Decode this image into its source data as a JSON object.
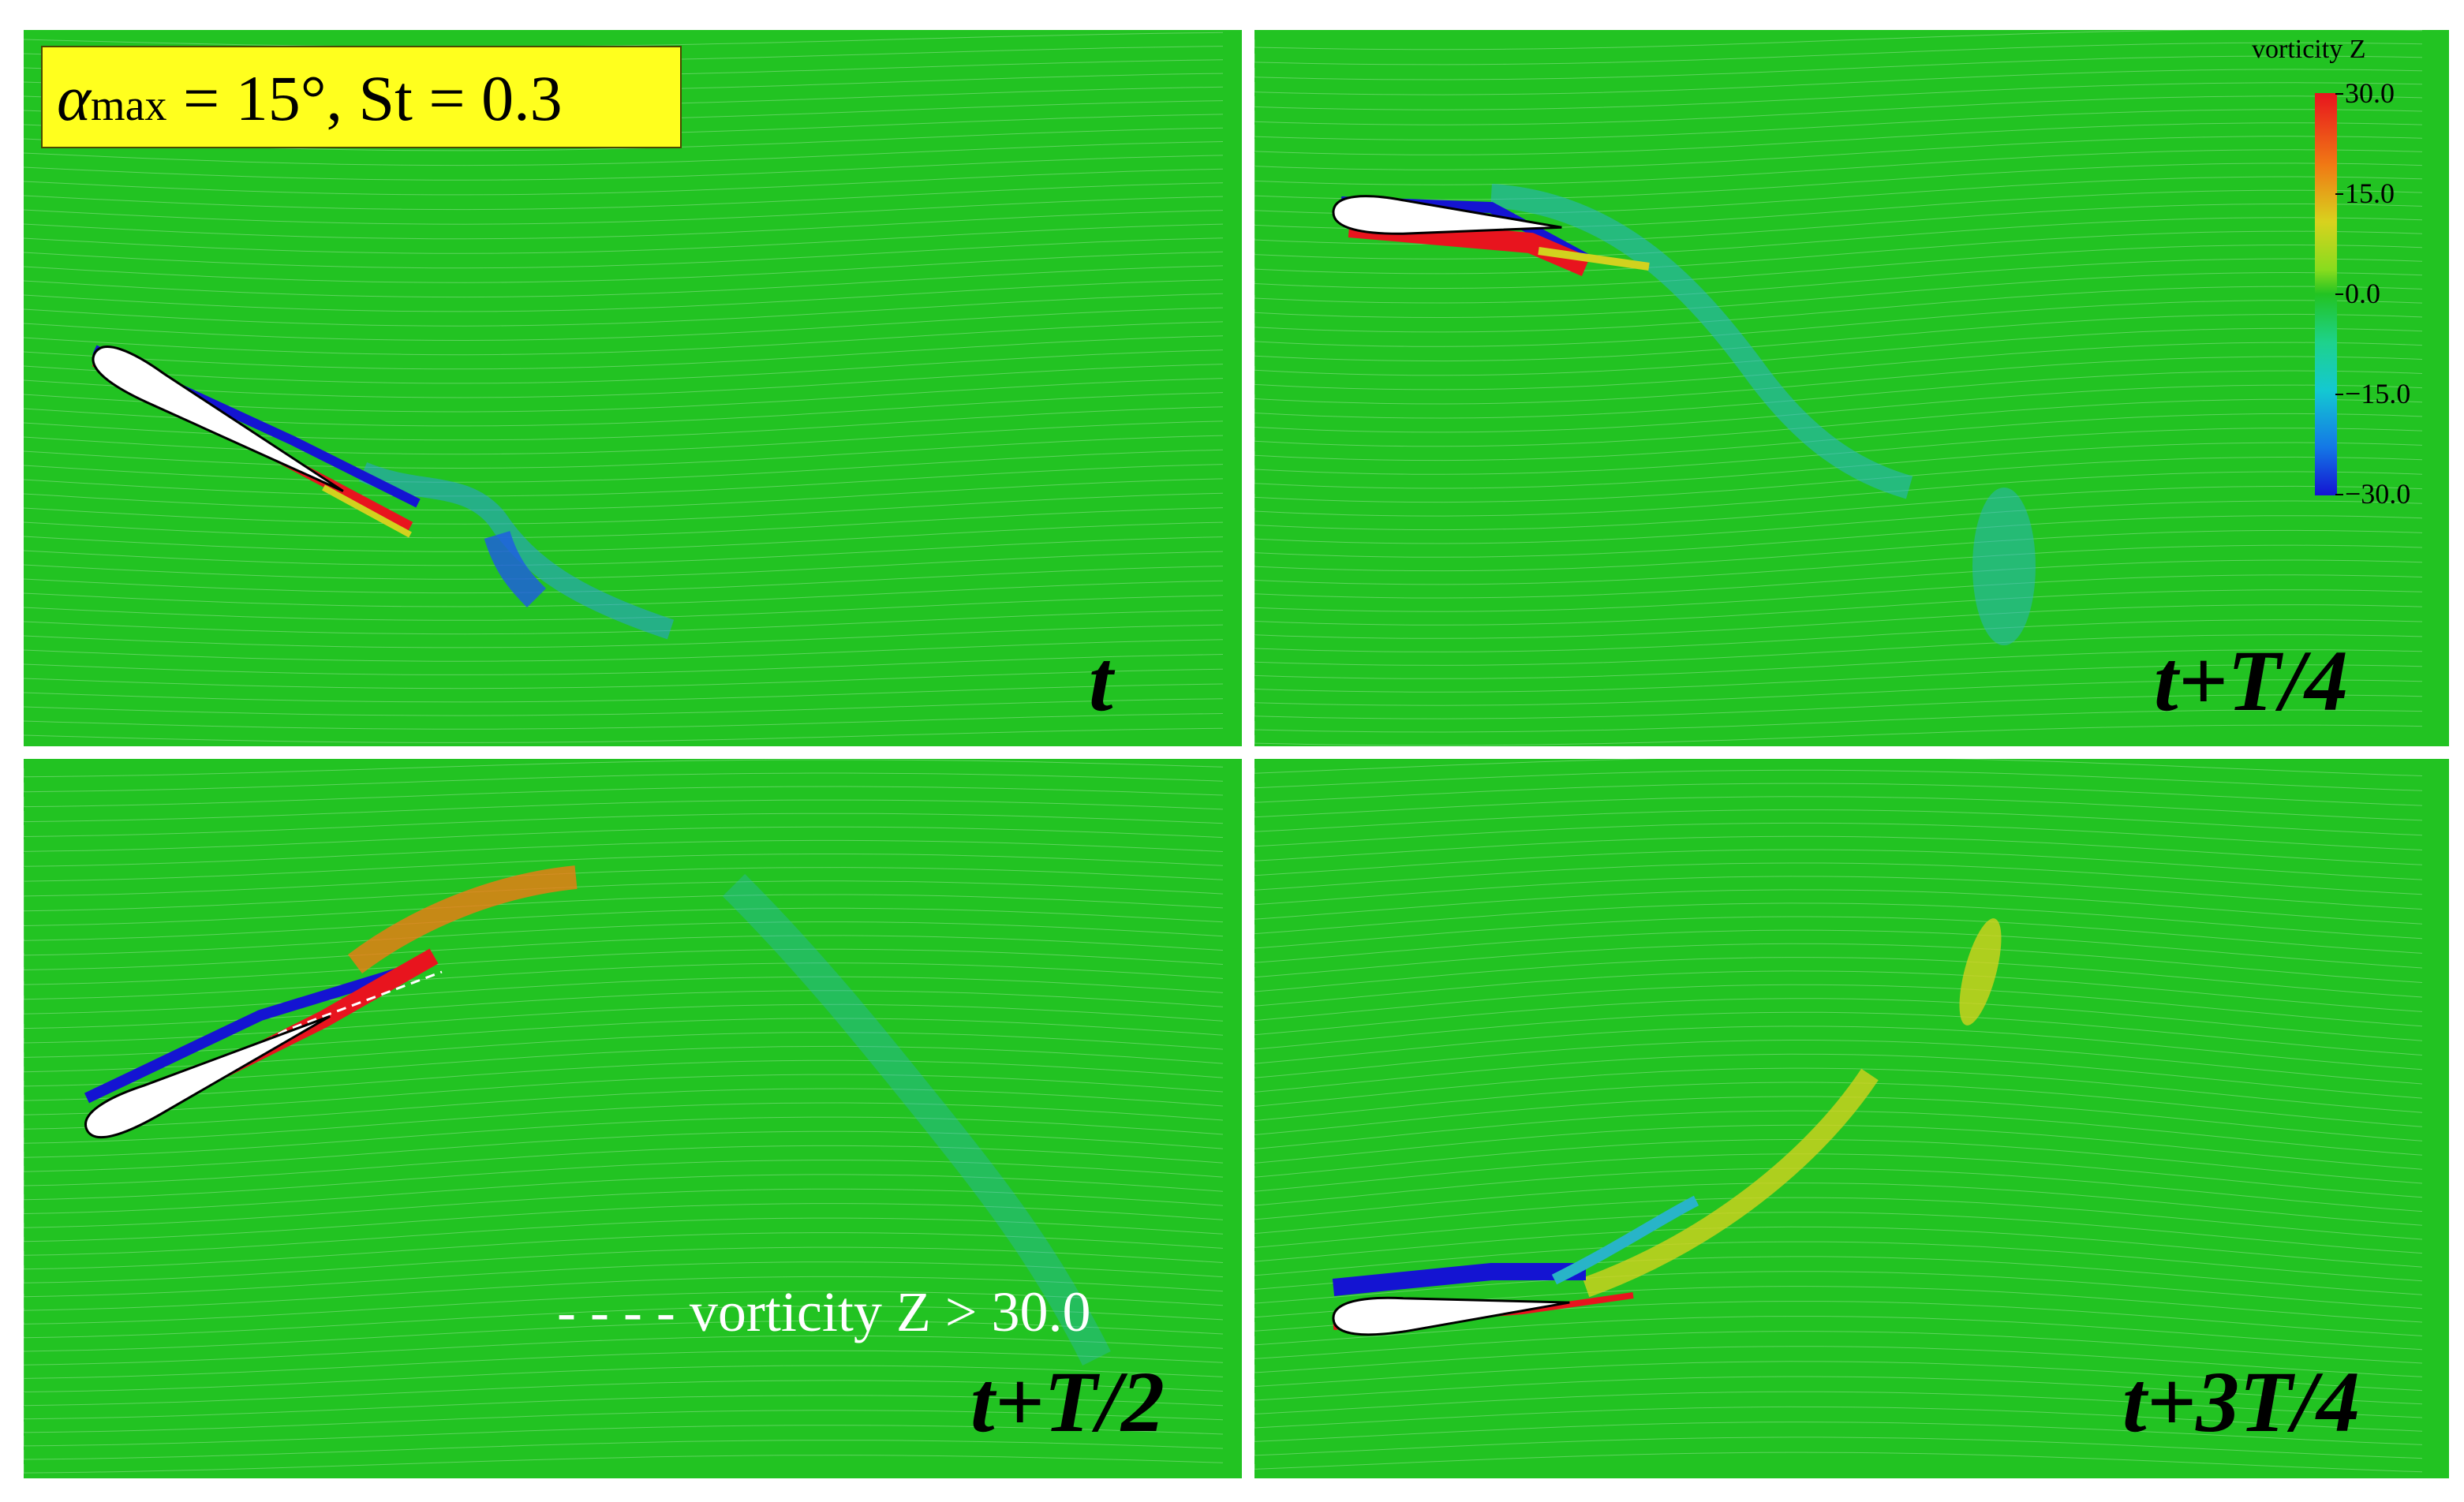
{
  "parameters": {
    "alpha_symbol": "α",
    "alpha_subscript": "max",
    "rest": " = 15°, St = 0.3"
  },
  "colorbar": {
    "title": "vorticity Z",
    "ticks": [
      "30.0",
      "15.0",
      "0.0",
      "−15.0",
      "−30.0"
    ]
  },
  "panels": [
    {
      "label": "t"
    },
    {
      "label": "t+T/4"
    },
    {
      "label": "t+T/2",
      "note": "- - - - vorticity Z > 30.0"
    },
    {
      "label": "t+3T/4"
    }
  ],
  "colors": {
    "background": "#22c322",
    "positive": "#e8141e",
    "negative": "#1414d2",
    "streamline": "#ffffff"
  }
}
